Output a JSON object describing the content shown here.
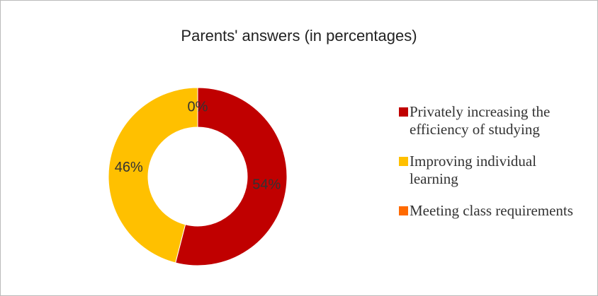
{
  "chart_data": {
    "type": "donut",
    "title": "Parents' answers (in percentages)",
    "categories": [
      "Privately increasing the efficiency of studying",
      "Improving individual learning",
      "Meeting class requirements"
    ],
    "values": [
      54,
      46,
      0
    ],
    "value_labels": [
      "54%",
      "46%",
      "0%"
    ],
    "colors": [
      "#c00000",
      "#ffc000",
      "#ff6a00"
    ],
    "legend": "right"
  }
}
